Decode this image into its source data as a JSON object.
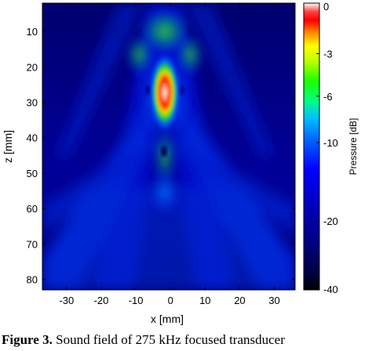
{
  "chart_data": {
    "type": "heatmap",
    "title": "",
    "xlabel": "x [mm]",
    "ylabel": "z [mm]",
    "xlim": [
      -37,
      36
    ],
    "ylim": [
      83,
      2
    ],
    "x_ticks": [
      "-30",
      "-20",
      "-10",
      "0",
      "10",
      "20",
      "30"
    ],
    "x_tick_values": [
      -30,
      -20,
      -10,
      0,
      10,
      20,
      30
    ],
    "y_ticks": [
      "10",
      "20",
      "30",
      "40",
      "50",
      "60",
      "70",
      "80"
    ],
    "y_tick_values": [
      10,
      20,
      30,
      40,
      50,
      60,
      70,
      80
    ],
    "colorbar": {
      "label": "Pressure [dB]",
      "range_db": [
        -40,
        0
      ],
      "ticks": [
        "0",
        "-3",
        "-6",
        "-10",
        "-20",
        "-40"
      ],
      "tick_values": [
        0,
        -3,
        -6,
        -10,
        -20,
        -40
      ],
      "scale": "logarithmic-spaced (-40 to 0 dB)"
    },
    "features": {
      "focal_peak": {
        "x": 0,
        "z": 26,
        "level_db": 0
      },
      "focal_region_minus3db": {
        "x": [
          -1,
          1
        ],
        "z": [
          19,
          33
        ]
      },
      "colormap": "jet"
    }
  },
  "caption": {
    "label": "Figure 3.",
    "text": " Sound field of 275 kHz focused transducer"
  },
  "colors": {
    "background_low": "#00008f",
    "mid": "#00ff00",
    "high": "#ff0000",
    "peak": "#ffffff"
  }
}
